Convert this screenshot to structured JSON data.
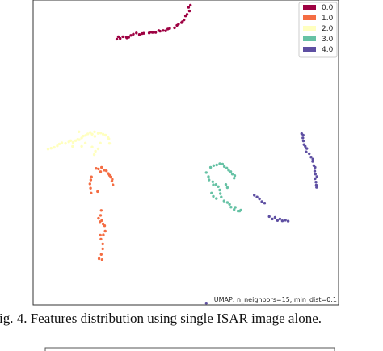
{
  "colors": {
    "0.0": "#9e0142",
    "1.0": "#f46d43",
    "2.0": "#ffffbf",
    "3.0": "#66c2a5",
    "4.0": "#5e4fa2"
  },
  "chart_data": {
    "type": "scatter",
    "title": "",
    "xlabel": "",
    "ylabel": "",
    "xlim": [
      0,
      100
    ],
    "ylim": [
      0,
      100
    ],
    "grid": false,
    "axis_ticks": false,
    "legend_position": "top-right",
    "annotation": "UMAP: n_neighbors=15, min_dist=0.1",
    "series": [
      {
        "name": "0.0",
        "points": [
          [
            51.5,
            98.3
          ],
          [
            50.9,
            97.6
          ],
          [
            51.2,
            96.4
          ],
          [
            50.4,
            95.3
          ],
          [
            49.9,
            94.8
          ],
          [
            49.4,
            93.5
          ],
          [
            48.9,
            92.9
          ],
          [
            48.6,
            92.6
          ],
          [
            47.6,
            92.1
          ],
          [
            47.1,
            91.7
          ],
          [
            46.3,
            90.9
          ],
          [
            44.7,
            90.7
          ],
          [
            44.1,
            90.5
          ],
          [
            43.4,
            89.9
          ],
          [
            42.6,
            90.0
          ],
          [
            41.6,
            89.8
          ],
          [
            41.1,
            90.0
          ],
          [
            40.1,
            89.4
          ],
          [
            39.1,
            89.4
          ],
          [
            38.6,
            89.5
          ],
          [
            38.0,
            89.2
          ],
          [
            36.2,
            89.1
          ],
          [
            35.6,
            89.0
          ],
          [
            34.8,
            88.7
          ],
          [
            33.8,
            89.2
          ],
          [
            32.8,
            88.8
          ],
          [
            32.0,
            88.4
          ],
          [
            31.3,
            87.8
          ],
          [
            30.7,
            87.6
          ],
          [
            30.5,
            87.9
          ],
          [
            29.4,
            88.0
          ],
          [
            28.5,
            87.4
          ],
          [
            27.9,
            88.0
          ],
          [
            27.4,
            87.2
          ]
        ]
      },
      {
        "name": "1.0",
        "points": [
          [
            20.6,
            44.8
          ],
          [
            21.4,
            44.6
          ],
          [
            22.4,
            45.1
          ],
          [
            22.1,
            43.7
          ],
          [
            23.3,
            44.2
          ],
          [
            24.0,
            44.0
          ],
          [
            24.6,
            43.1
          ],
          [
            25.0,
            42.5
          ],
          [
            25.4,
            41.9
          ],
          [
            25.9,
            41.2
          ],
          [
            25.8,
            40.6
          ],
          [
            26.1,
            39.4
          ],
          [
            19.1,
            42.0
          ],
          [
            18.9,
            41.0
          ],
          [
            18.6,
            39.7
          ],
          [
            18.8,
            38.3
          ],
          [
            19.0,
            36.7
          ],
          [
            21.1,
            37.2
          ],
          [
            22.3,
            31.0
          ],
          [
            22.1,
            29.4
          ],
          [
            21.4,
            28.4
          ],
          [
            21.9,
            27.3
          ],
          [
            22.5,
            27.7
          ],
          [
            22.9,
            26.6
          ],
          [
            23.4,
            26.0
          ],
          [
            23.6,
            24.2
          ],
          [
            23.0,
            23.0
          ],
          [
            22.0,
            22.9
          ],
          [
            22.2,
            21.6
          ],
          [
            22.8,
            20.0
          ],
          [
            22.8,
            18.4
          ],
          [
            22.3,
            16.6
          ],
          [
            21.6,
            15.2
          ],
          [
            22.6,
            14.9
          ]
        ]
      },
      {
        "name": "2.0",
        "points": [
          [
            4.9,
            51.1
          ],
          [
            5.9,
            51.4
          ],
          [
            6.9,
            51.7
          ],
          [
            7.9,
            52.2
          ],
          [
            8.6,
            52.8
          ],
          [
            9.4,
            53.2
          ],
          [
            10.6,
            53.0
          ],
          [
            11.7,
            53.5
          ],
          [
            12.3,
            53.9
          ],
          [
            13.1,
            53.3
          ],
          [
            13.9,
            53.9
          ],
          [
            14.6,
            54.3
          ],
          [
            15.1,
            54.2
          ],
          [
            15.9,
            54.8
          ],
          [
            16.4,
            55.4
          ],
          [
            17.2,
            55.6
          ],
          [
            17.9,
            56.1
          ],
          [
            18.7,
            56.6
          ],
          [
            19.3,
            56.0
          ],
          [
            20.2,
            55.3
          ],
          [
            20.1,
            56.8
          ],
          [
            21.3,
            56.3
          ],
          [
            22.1,
            56.4
          ],
          [
            22.9,
            56.0
          ],
          [
            23.7,
            55.7
          ],
          [
            24.5,
            55.1
          ],
          [
            24.8,
            54.5
          ],
          [
            25.0,
            53.0
          ],
          [
            22.0,
            53.1
          ],
          [
            21.3,
            51.2
          ],
          [
            20.4,
            50.4
          ],
          [
            20.0,
            49.3
          ],
          [
            15.0,
            56.8
          ],
          [
            17.1,
            53.1
          ],
          [
            12.9,
            52.0
          ],
          [
            15.9,
            52.0
          ],
          [
            19.3,
            51.8
          ]
        ]
      },
      {
        "name": "3.0",
        "points": [
          [
            58.1,
            45.1
          ],
          [
            59.1,
            45.7
          ],
          [
            60.1,
            45.9
          ],
          [
            61.1,
            46.3
          ],
          [
            62.0,
            46.2
          ],
          [
            62.6,
            45.4
          ],
          [
            63.4,
            44.9
          ],
          [
            64.0,
            44.2
          ],
          [
            64.7,
            43.7
          ],
          [
            65.2,
            42.9
          ],
          [
            66.0,
            42.4
          ],
          [
            65.8,
            41.6
          ],
          [
            56.7,
            43.4
          ],
          [
            57.4,
            42.1
          ],
          [
            57.6,
            41.0
          ],
          [
            58.8,
            40.4
          ],
          [
            59.0,
            39.4
          ],
          [
            59.9,
            39.5
          ],
          [
            60.6,
            38.8
          ],
          [
            61.1,
            37.7
          ],
          [
            61.3,
            36.5
          ],
          [
            61.6,
            35.4
          ],
          [
            62.5,
            34.1
          ],
          [
            63.6,
            33.6
          ],
          [
            64.3,
            33.0
          ],
          [
            64.8,
            32.1
          ],
          [
            65.8,
            31.3
          ],
          [
            66.2,
            32.0
          ],
          [
            67.1,
            30.8
          ],
          [
            67.6,
            30.8
          ],
          [
            68.0,
            31.1
          ],
          [
            58.4,
            36.7
          ],
          [
            59.0,
            35.6
          ],
          [
            60.0,
            34.9
          ],
          [
            63.1,
            39.5
          ],
          [
            63.6,
            38.5
          ]
        ]
      },
      {
        "name": "4.0",
        "points": [
          [
            87.9,
            56.2
          ],
          [
            88.4,
            55.7
          ],
          [
            88.3,
            54.8
          ],
          [
            88.5,
            53.8
          ],
          [
            88.7,
            52.6
          ],
          [
            89.1,
            52.0
          ],
          [
            89.6,
            51.3
          ],
          [
            89.4,
            50.2
          ],
          [
            90.4,
            49.6
          ],
          [
            91.0,
            48.5
          ],
          [
            91.6,
            47.8
          ],
          [
            91.5,
            47.1
          ],
          [
            91.9,
            45.7
          ],
          [
            92.3,
            45.1
          ],
          [
            92.2,
            43.9
          ],
          [
            92.4,
            42.9
          ],
          [
            92.9,
            42.1
          ],
          [
            92.3,
            41.4
          ],
          [
            92.6,
            40.3
          ],
          [
            92.7,
            39.3
          ],
          [
            92.8,
            38.6
          ],
          [
            72.4,
            36.0
          ],
          [
            73.3,
            35.4
          ],
          [
            74.1,
            34.8
          ],
          [
            74.9,
            33.9
          ],
          [
            75.8,
            33.4
          ],
          [
            77.3,
            29.0
          ],
          [
            78.3,
            28.2
          ],
          [
            79.2,
            28.7
          ],
          [
            80.0,
            27.7
          ],
          [
            80.8,
            28.2
          ],
          [
            81.6,
            27.6
          ],
          [
            82.6,
            27.8
          ],
          [
            83.5,
            27.5
          ],
          [
            56.7,
            0.6
          ]
        ]
      }
    ]
  },
  "caption": "ig. 4. Features distribution using single ISAR image alone."
}
